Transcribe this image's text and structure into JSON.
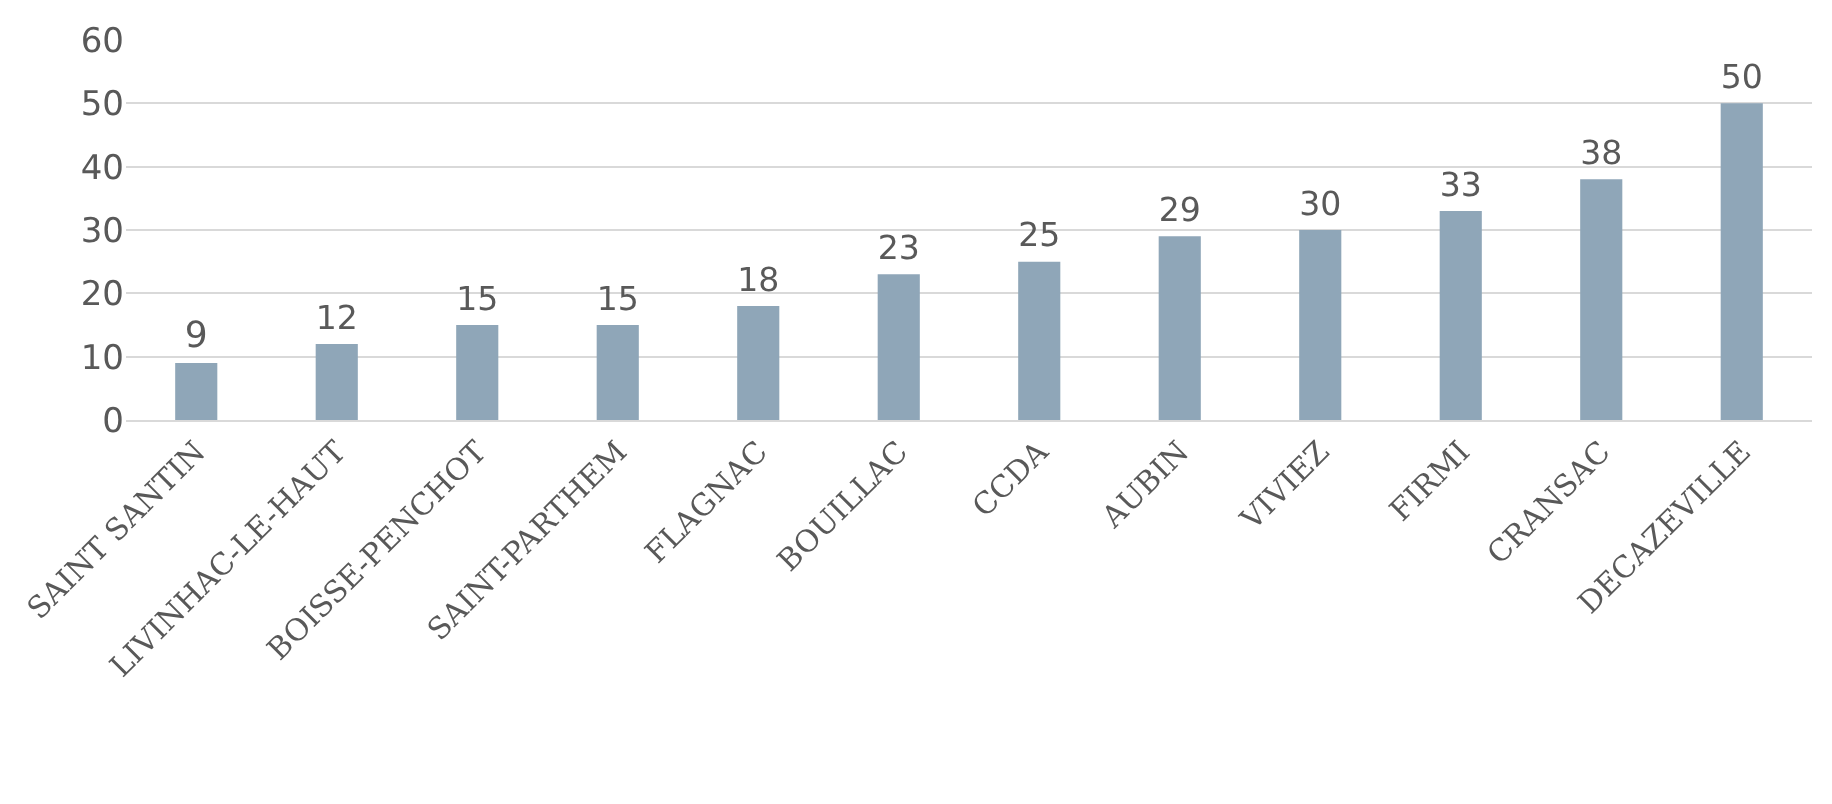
{
  "chart_data": {
    "type": "bar",
    "categories": [
      "SAINT SANTIN",
      "LIVINHAC-LE-HAUT",
      "BOISSE-PENCHOT",
      "SAINT-PARTHEM",
      "FLAGNAC",
      "BOUILLAC",
      "CCDA",
      "AUBIN",
      "VIVIEZ",
      "FIRMI",
      "CRANSAC",
      "DECAZEVILLE"
    ],
    "values": [
      9,
      12,
      15,
      15,
      18,
      23,
      25,
      29,
      30,
      33,
      38,
      50
    ],
    "color": "#8fa6b8",
    "ylim": [
      0,
      60
    ],
    "yticks": [
      0,
      10,
      20,
      30,
      40,
      50,
      60
    ],
    "grid": "y",
    "data_labels": true
  }
}
